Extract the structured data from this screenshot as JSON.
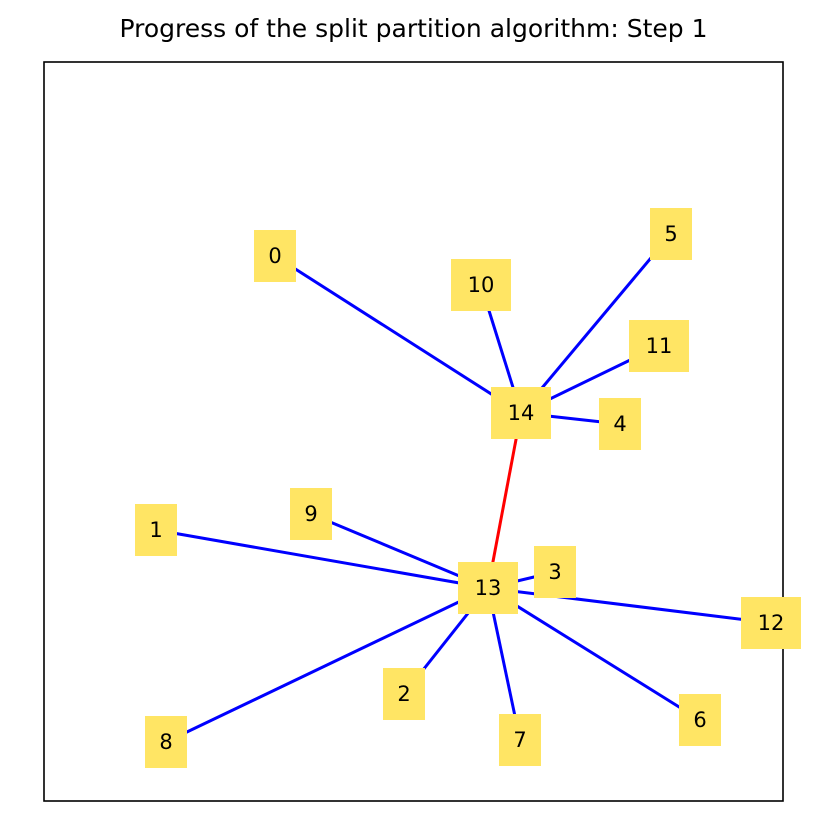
{
  "title": "Progress of the split partition algorithm: Step 1",
  "style": {
    "node_fill": "#ffe564",
    "edge_color": "#0000ff",
    "highlight_color": "#ff0000",
    "frame_color": "#000000"
  },
  "nodes": [
    "0",
    "1",
    "2",
    "3",
    "4",
    "5",
    "6",
    "7",
    "8",
    "9",
    "10",
    "11",
    "12",
    "13",
    "14"
  ],
  "edges": [
    {
      "from": "14",
      "to": "0",
      "highlight": false
    },
    {
      "from": "14",
      "to": "10",
      "highlight": false
    },
    {
      "from": "14",
      "to": "5",
      "highlight": false
    },
    {
      "from": "14",
      "to": "11",
      "highlight": false
    },
    {
      "from": "14",
      "to": "4",
      "highlight": false
    },
    {
      "from": "14",
      "to": "13",
      "highlight": true
    },
    {
      "from": "13",
      "to": "1",
      "highlight": false
    },
    {
      "from": "13",
      "to": "9",
      "highlight": false
    },
    {
      "from": "13",
      "to": "3",
      "highlight": false
    },
    {
      "from": "13",
      "to": "12",
      "highlight": false
    },
    {
      "from": "13",
      "to": "6",
      "highlight": false
    },
    {
      "from": "13",
      "to": "7",
      "highlight": false
    },
    {
      "from": "13",
      "to": "2",
      "highlight": false
    },
    {
      "from": "13",
      "to": "8",
      "highlight": false
    }
  ]
}
